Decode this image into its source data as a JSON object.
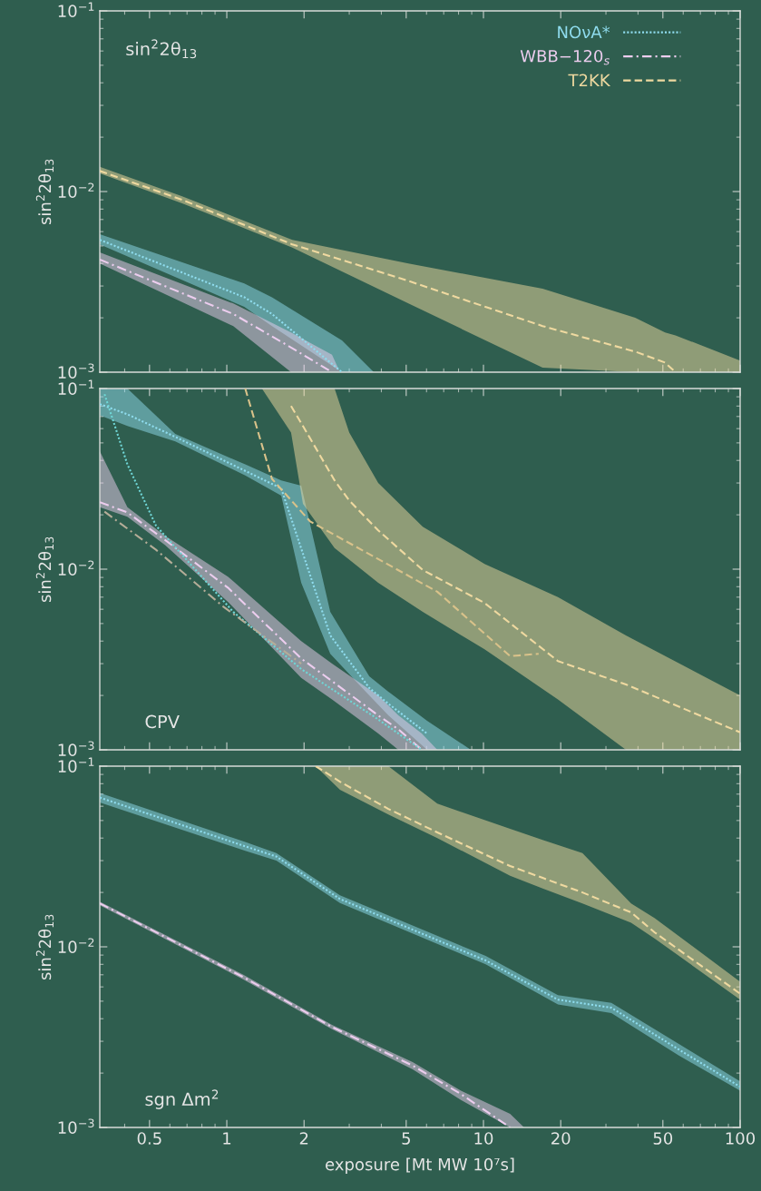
{
  "chart_data": [
    {
      "type": "line",
      "ylabel": "sin$^{2}$2θ$_{13}$",
      "log": "xy",
      "xlim": [
        0.32,
        100
      ],
      "ylim": [
        0.001,
        0.1
      ],
      "xticks": [
        0.5,
        1,
        2,
        5,
        10,
        20,
        50,
        100
      ],
      "yticks": [
        {
          "value": 0.001,
          "label": "10$^{−3}$"
        },
        {
          "value": 0.01,
          "label": "10$^{−2}$"
        },
        {
          "value": 0.1,
          "label": "10$^{−1}$"
        }
      ],
      "tick_labels": "y",
      "legend": "top right",
      "annotations": [
        "sin$^{2}$2θ$_{13}$"
      ],
      "series": [
        {
          "name": "NOνA*",
          "color": "#8fdcee",
          "line_style": "dotted",
          "x": [
            0.32,
            1.17,
            1.5,
            2.81,
            3.74
          ],
          "values": [
            0.0054,
            0.0026,
            0.0021,
            0.001,
            null
          ],
          "lower": [
            0.0051,
            0.0023,
            0.0018,
            0.001,
            0.001
          ],
          "upper": [
            0.0058,
            0.0031,
            0.0026,
            0.0015,
            0.001
          ]
        },
        {
          "name": "WBB−120$_{s}$",
          "color": "#eccdee",
          "line_style": "dashdot",
          "x": [
            0.32,
            1.06,
            1.78,
            2.57,
            2.76
          ],
          "values": [
            0.0042,
            0.0021,
            0.00137,
            0.001,
            null
          ],
          "lower": [
            0.004,
            0.0018,
            0.001,
            0.001,
            0.001
          ],
          "upper": [
            0.0046,
            0.0024,
            0.00166,
            0.00125,
            0.001
          ]
        },
        {
          "name": "T2KK",
          "color": "#efd9a0",
          "line_style": "dashed",
          "x": [
            0.32,
            0.67,
            1.8,
            5.1,
            17,
            39,
            51,
            56,
            100
          ],
          "values": [
            0.013,
            0.009,
            0.0051,
            0.0032,
            0.0018,
            0.0013,
            0.00113,
            0.001,
            null
          ],
          "lower": [
            0.0126,
            0.0086,
            0.0049,
            0.0024,
            0.00106,
            0.001,
            0.001,
            0.001,
            0.001
          ],
          "upper": [
            0.0137,
            0.0094,
            0.0054,
            0.004,
            0.0029,
            0.002,
            0.00166,
            0.0016,
            0.00116
          ]
        }
      ]
    },
    {
      "type": "line",
      "ylabel": "sin$^{2}$2θ$_{13}$",
      "log": "xy",
      "xlim": [
        0.32,
        100
      ],
      "ylim": [
        0.001,
        0.1
      ],
      "xticks": [
        0.5,
        1,
        2,
        5,
        10,
        20,
        50,
        100
      ],
      "yticks": [
        {
          "value": 0.001,
          "label": "10$^{−3}$"
        },
        {
          "value": 0.01,
          "label": "10$^{−2}$"
        },
        {
          "value": 0.1,
          "label": "10$^{−1}$"
        }
      ],
      "tick_labels": "y",
      "annotations": [
        "CPV"
      ],
      "series": [
        {
          "color": "#8fdcee",
          "line_style": "dotted",
          "x": [
            0.32,
            0.41,
            0.63,
            1.18,
            1.63,
            1.95,
            2.53,
            3.59,
            4.26,
            6.03,
            8.93
          ],
          "values": [
            0.082,
            0.072,
            0.054,
            0.035,
            0.028,
            0.013,
            0.0043,
            0.0022,
            0.0018,
            0.00123,
            null
          ],
          "lower": [
            0.071,
            0.062,
            0.051,
            0.033,
            0.0255,
            0.0084,
            0.0034,
            0.002,
            0.00155,
            0.001,
            0.001
          ],
          "upper": [
            0.1,
            0.1,
            0.056,
            0.038,
            0.031,
            0.029,
            0.0058,
            0.00255,
            0.0021,
            0.00145,
            0.001
          ]
        },
        {
          "color": "#eccdee",
          "line_style": "dashdot",
          "x": [
            0.32,
            0.41,
            0.575,
            1.01,
            1.95,
            2.57,
            3.89,
            4.66,
            5.75,
            6.61
          ],
          "values": [
            0.0235,
            0.0206,
            0.0145,
            0.0079,
            0.0032,
            0.0024,
            0.00155,
            0.0013,
            0.001,
            null
          ],
          "lower": [
            0.022,
            0.0195,
            0.0136,
            0.0066,
            0.0025,
            0.0019,
            0.00123,
            0.001,
            0.001,
            0.001
          ],
          "upper": [
            0.045,
            0.022,
            0.0153,
            0.0091,
            0.004,
            0.003,
            0.002,
            0.00155,
            0.00123,
            0.001
          ]
        },
        {
          "color": "#efd9a0",
          "line_style": "dashed",
          "x": [
            1.37,
            1.78,
            1.98,
            2.63,
            3.0,
            3.89,
            5.8,
            10.1,
            19.5,
            35.9,
            100
          ],
          "values": [
            null,
            0.08,
            0.062,
            0.031,
            0.024,
            0.0164,
            0.0099,
            0.0065,
            0.0031,
            0.0023,
            0.00125
          ],
          "lower": [
            0.1,
            0.057,
            0.023,
            0.0131,
            0.0113,
            0.0084,
            0.0058,
            0.0036,
            0.0019,
            0.001,
            0.001
          ],
          "upper": [
            0.1,
            0.1,
            0.1,
            0.1,
            0.057,
            0.03,
            0.0172,
            0.0107,
            0.007,
            0.0043,
            0.002
          ]
        },
        {
          "color": "#6fd6d6",
          "line_style": "dotted",
          "x": [
            0.334,
            0.41,
            0.53,
            1.06,
            1.95,
            3.74,
            5.75
          ],
          "values": [
            0.093,
            0.038,
            0.0174,
            0.0058,
            0.0028,
            0.00153,
            0.001
          ]
        },
        {
          "color": "#b5ad98",
          "line_style": "dashdot",
          "x": [
            0.334,
            0.53,
            0.97,
            1.95
          ],
          "values": [
            0.0208,
            0.0128,
            0.0062,
            0.003
          ]
        },
        {
          "color": "#d9c28a",
          "line_style": "dashed",
          "x": [
            1.18,
            1.5,
            2.11,
            6.61,
            12.7,
            16.4
          ],
          "values": [
            0.1,
            0.0316,
            0.0184,
            0.0075,
            0.0033,
            0.0034
          ]
        }
      ]
    },
    {
      "type": "line",
      "ylabel": "sin$^{2}$2θ$_{13}$",
      "xlabel": "exposure [Mt MW 10⁷s]",
      "log": "xy",
      "xlim": [
        0.32,
        100
      ],
      "ylim": [
        0.001,
        0.1
      ],
      "xticks": [
        0.5,
        1,
        2,
        5,
        10,
        20,
        50,
        100
      ],
      "yticks": [
        {
          "value": 0.001,
          "label": "10$^{−3}$"
        },
        {
          "value": 0.01,
          "label": "10$^{−2}$"
        },
        {
          "value": 0.1,
          "label": "10$^{−1}$"
        }
      ],
      "annotations": [
        "sgn Δm$^{2}$"
      ],
      "series": [
        {
          "color": "#8fdcee",
          "line_style": "dotted",
          "x": [
            0.32,
            1.18,
            1.56,
            2.76,
            10.2,
            19.5,
            31.5,
            57.7,
            100
          ],
          "values": [
            0.067,
            0.036,
            0.0316,
            0.0184,
            0.0084,
            0.0051,
            0.0046,
            0.0027,
            0.00168
          ],
          "lower": [
            0.063,
            0.034,
            0.03,
            0.0175,
            0.008,
            0.0048,
            0.0043,
            0.0025,
            0.0016
          ],
          "upper": [
            0.071,
            0.038,
            0.033,
            0.0193,
            0.0089,
            0.0054,
            0.0049,
            0.0029,
            0.0018
          ]
        },
        {
          "color": "#eccdee",
          "line_style": "dashdot",
          "x": [
            0.32,
            1.16,
            2.57,
            5.3,
            8.17,
            12.7,
            14.4
          ],
          "values": [
            0.0174,
            0.0068,
            0.0036,
            0.0022,
            0.00153,
            0.001,
            null
          ],
          "lower": [
            0.017,
            0.0066,
            0.0035,
            0.0021,
            0.00142,
            0.001,
            0.001
          ],
          "upper": [
            0.0178,
            0.007,
            0.0037,
            0.0023,
            0.0016,
            0.00119,
            0.001
          ]
        },
        {
          "color": "#efd9a0",
          "line_style": "dashed",
          "x": [
            2.22,
            2.76,
            4.26,
            6.61,
            12.7,
            17.1,
            24.3,
            37.6,
            46.5,
            100
          ],
          "values": [
            0.1,
            0.082,
            0.058,
            0.043,
            0.028,
            0.024,
            0.02,
            0.0155,
            0.012,
            0.0055
          ],
          "lower": [
            0.1,
            0.074,
            0.054,
            0.04,
            0.0247,
            0.021,
            0.0174,
            0.0136,
            0.0111,
            0.0051
          ],
          "upper": [
            0.1,
            0.1,
            0.1,
            0.062,
            0.045,
            0.039,
            0.033,
            0.0174,
            0.0144,
            0.0064
          ]
        }
      ]
    }
  ]
}
